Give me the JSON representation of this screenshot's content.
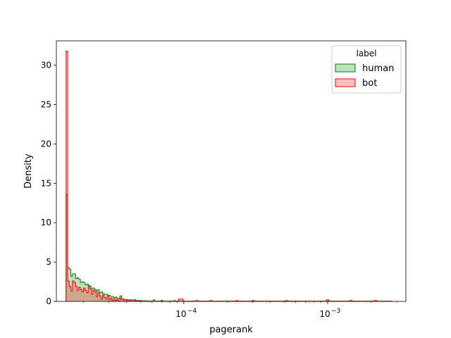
{
  "chart_data": {
    "type": "histogram",
    "xlabel": "pagerank",
    "ylabel": "Density",
    "xscale": "log",
    "xlim": [
      1.3e-05,
      0.0035
    ],
    "ylim": [
      0,
      33.1
    ],
    "x_ticks": [
      {
        "value": 0.0001,
        "base": "10",
        "exponent": "−4"
      },
      {
        "value": 0.001,
        "base": "10",
        "exponent": "−3"
      }
    ],
    "y_ticks": [
      {
        "value": 0,
        "label": "0"
      },
      {
        "value": 5,
        "label": "5"
      },
      {
        "value": 10,
        "label": "10"
      },
      {
        "value": 15,
        "label": "15"
      },
      {
        "value": 20,
        "label": "20"
      },
      {
        "value": 25,
        "label": "25"
      },
      {
        "value": 30,
        "label": "30"
      }
    ],
    "legend": {
      "title": "label",
      "placement": "upper right"
    },
    "series": [
      {
        "name": "human",
        "color": "#008000",
        "fill": "#bfe0bf",
        "bins": [
          [
            1.519e-05,
            1.558e-05,
            13.6
          ],
          [
            1.558e-05,
            1.598e-05,
            4.3
          ],
          [
            1.598e-05,
            1.639e-05,
            4.1
          ],
          [
            1.639e-05,
            1.681e-05,
            3.2
          ],
          [
            1.681e-05,
            1.724e-05,
            3.5
          ],
          [
            1.724e-05,
            1.768e-05,
            3.5
          ],
          [
            1.768e-05,
            1.813e-05,
            2.9
          ],
          [
            1.813e-05,
            1.86e-05,
            3.0
          ],
          [
            1.86e-05,
            1.908e-05,
            2.8
          ],
          [
            1.908e-05,
            1.957e-05,
            2.4
          ],
          [
            1.957e-05,
            2.007e-05,
            2.5
          ],
          [
            2.007e-05,
            2.059e-05,
            2.4
          ],
          [
            2.059e-05,
            2.112e-05,
            2.1
          ],
          [
            2.112e-05,
            2.166e-05,
            2.2
          ],
          [
            2.166e-05,
            2.222e-05,
            1.9
          ],
          [
            2.222e-05,
            2.279e-05,
            1.9
          ],
          [
            2.279e-05,
            2.337e-05,
            1.6
          ],
          [
            2.337e-05,
            2.397e-05,
            1.7
          ],
          [
            2.397e-05,
            2.459e-05,
            1.5
          ],
          [
            2.459e-05,
            2.522e-05,
            1.3
          ],
          [
            2.522e-05,
            2.587e-05,
            1.5
          ],
          [
            2.587e-05,
            2.653e-05,
            1.1
          ],
          [
            2.653e-05,
            2.721e-05,
            1.2
          ],
          [
            2.721e-05,
            2.791e-05,
            1.0
          ],
          [
            2.791e-05,
            2.863e-05,
            0.9
          ],
          [
            2.863e-05,
            2.936e-05,
            0.9
          ],
          [
            2.936e-05,
            3.012e-05,
            0.8
          ],
          [
            3.012e-05,
            3.089e-05,
            0.75
          ],
          [
            3.089e-05,
            3.168e-05,
            0.6
          ],
          [
            3.168e-05,
            3.25e-05,
            0.6
          ],
          [
            3.25e-05,
            3.333e-05,
            0.5
          ],
          [
            3.333e-05,
            3.419e-05,
            0.55
          ],
          [
            3.419e-05,
            3.507e-05,
            0.4
          ],
          [
            3.507e-05,
            3.597e-05,
            0.4
          ],
          [
            3.597e-05,
            3.689e-05,
            0.35
          ],
          [
            3.689e-05,
            3.784e-05,
            0.3
          ],
          [
            3.784e-05,
            3.881e-05,
            0.3
          ],
          [
            3.881e-05,
            3.981e-05,
            0.25
          ],
          [
            3.981e-05,
            4.083e-05,
            0.25
          ],
          [
            4.083e-05,
            4.188e-05,
            0.2
          ],
          [
            4.188e-05,
            4.296e-05,
            0.2
          ],
          [
            4.296e-05,
            4.406e-05,
            0.18
          ],
          [
            4.406e-05,
            4.519e-05,
            0.15
          ],
          [
            4.519e-05,
            4.635e-05,
            0.15
          ],
          [
            4.635e-05,
            4.754e-05,
            0.12
          ],
          [
            4.754e-05,
            4.876e-05,
            0.12
          ],
          [
            4.876e-05,
            5.002e-05,
            0.1
          ],
          [
            5.002e-05,
            5.13e-05,
            0.1
          ],
          [
            5.13e-05,
            5.262e-05,
            0.08
          ],
          [
            5.262e-05,
            5.397e-05,
            0.08
          ],
          [
            5.397e-05,
            5.536e-05,
            0.07
          ],
          [
            5.536e-05,
            5.678e-05,
            0.06
          ],
          [
            5.678e-05,
            5.824e-05,
            0.06
          ],
          [
            5.824e-05,
            5.973e-05,
            0.05
          ],
          [
            5.973e-05,
            6.127e-05,
            0.05
          ],
          [
            6.127e-05,
            6.284e-05,
            0.2
          ],
          [
            6.284e-05,
            6.446e-05,
            0.04
          ],
          [
            6.446e-05,
            6.611e-05,
            0.04
          ],
          [
            6.611e-05,
            6.781e-05,
            0.03
          ],
          [
            6.781e-05,
            6.955e-05,
            0.03
          ],
          [
            6.955e-05,
            7.134e-05,
            0.15
          ],
          [
            7.134e-05,
            7.317e-05,
            0.02
          ],
          [
            7.317e-05,
            7.505e-05,
            0.02
          ],
          [
            7.505e-05,
            7.698e-05,
            0.02
          ],
          [
            7.698e-05,
            7.896e-05,
            0.02
          ],
          [
            7.896e-05,
            8.099e-05,
            0.02
          ],
          [
            8.099e-05,
            8.307e-05,
            0.02
          ],
          [
            8.307e-05,
            8.521e-05,
            0.02
          ],
          [
            8.521e-05,
            8.74e-05,
            0.1
          ],
          [
            8.74e-05,
            0.0028,
            0.02
          ]
        ]
      },
      {
        "name": "bot",
        "color": "#ff0000",
        "fill": "#ffbfbf",
        "bins": [
          [
            1.519e-05,
            1.558e-05,
            31.8
          ],
          [
            1.558e-05,
            1.598e-05,
            2.6
          ],
          [
            1.598e-05,
            1.639e-05,
            1.9
          ],
          [
            1.639e-05,
            1.681e-05,
            1.3
          ],
          [
            1.681e-05,
            1.724e-05,
            2.6
          ],
          [
            1.724e-05,
            1.768e-05,
            2.4
          ],
          [
            1.768e-05,
            1.813e-05,
            1.9
          ],
          [
            1.813e-05,
            1.86e-05,
            1.4
          ],
          [
            1.86e-05,
            1.908e-05,
            1.8
          ],
          [
            1.908e-05,
            1.957e-05,
            1.5
          ],
          [
            1.957e-05,
            2.007e-05,
            1.2
          ],
          [
            2.007e-05,
            2.059e-05,
            1.7
          ],
          [
            2.059e-05,
            2.112e-05,
            1.4
          ],
          [
            2.112e-05,
            2.166e-05,
            1.1
          ],
          [
            2.166e-05,
            2.222e-05,
            2.0
          ],
          [
            2.222e-05,
            2.279e-05,
            1.6
          ],
          [
            2.279e-05,
            2.337e-05,
            0.9
          ],
          [
            2.337e-05,
            2.397e-05,
            1.4
          ],
          [
            2.397e-05,
            2.459e-05,
            1.2
          ],
          [
            2.459e-05,
            2.522e-05,
            0.6
          ],
          [
            2.522e-05,
            2.587e-05,
            1.1
          ],
          [
            2.587e-05,
            2.653e-05,
            0.7
          ],
          [
            2.653e-05,
            2.721e-05,
            0.3
          ],
          [
            2.721e-05,
            2.791e-05,
            0.8
          ],
          [
            2.791e-05,
            2.863e-05,
            0.5
          ],
          [
            2.863e-05,
            2.936e-05,
            0.3
          ],
          [
            2.936e-05,
            3.012e-05,
            0.7
          ],
          [
            3.012e-05,
            3.089e-05,
            0.2
          ],
          [
            3.089e-05,
            3.168e-05,
            0.4
          ],
          [
            3.168e-05,
            3.25e-05,
            0.1
          ],
          [
            3.25e-05,
            3.333e-05,
            0.35
          ],
          [
            3.333e-05,
            3.419e-05,
            0.1
          ],
          [
            3.419e-05,
            3.507e-05,
            0.25
          ],
          [
            3.507e-05,
            3.597e-05,
            0.05
          ],
          [
            3.597e-05,
            3.689e-05,
            0.7
          ],
          [
            3.689e-05,
            3.784e-05,
            0.3
          ],
          [
            3.784e-05,
            3.881e-05,
            0.1
          ],
          [
            3.881e-05,
            3.981e-05,
            0.05
          ],
          [
            3.981e-05,
            4.083e-05,
            0.2
          ],
          [
            4.083e-05,
            4.188e-05,
            0.05
          ],
          [
            4.188e-05,
            4.296e-05,
            0.1
          ],
          [
            4.296e-05,
            4.406e-05,
            0.05
          ],
          [
            4.406e-05,
            4.519e-05,
            0.02
          ],
          [
            4.519e-05,
            4.635e-05,
            0.2
          ],
          [
            4.635e-05,
            4.754e-05,
            0.02
          ],
          [
            4.754e-05,
            4.876e-05,
            0.1
          ],
          [
            4.876e-05,
            5.002e-05,
            0.02
          ],
          [
            5.002e-05,
            5.13e-05,
            0.05
          ],
          [
            5.13e-05,
            5.262e-05,
            0.02
          ],
          [
            5.262e-05,
            5.397e-05,
            0.02
          ],
          [
            5.397e-05,
            5.536e-05,
            0.05
          ],
          [
            5.536e-05,
            5.678e-05,
            0.02
          ],
          [
            5.678e-05,
            5.824e-05,
            0.02
          ],
          [
            5.824e-05,
            5.973e-05,
            0.02
          ],
          [
            5.973e-05,
            6.127e-05,
            0.02
          ],
          [
            6.127e-05,
            6.284e-05,
            0.02
          ],
          [
            6.284e-05,
            6.446e-05,
            0.02
          ],
          [
            6.446e-05,
            6.611e-05,
            0.02
          ],
          [
            6.611e-05,
            6.781e-05,
            0.02
          ],
          [
            6.781e-05,
            6.955e-05,
            0.02
          ],
          [
            6.955e-05,
            7.134e-05,
            0.02
          ],
          [
            7.134e-05,
            7.317e-05,
            0.02
          ],
          [
            7.317e-05,
            7.505e-05,
            0.02
          ],
          [
            7.505e-05,
            7.698e-05,
            0.02
          ],
          [
            7.698e-05,
            7.896e-05,
            0.02
          ],
          [
            7.896e-05,
            8.099e-05,
            0.02
          ],
          [
            8.099e-05,
            8.307e-05,
            0.02
          ],
          [
            8.307e-05,
            8.521e-05,
            0.02
          ],
          [
            8.521e-05,
            8.74e-05,
            0.02
          ],
          [
            8.74e-05,
            9.2e-05,
            0.02
          ],
          [
            9.2e-05,
            9.9e-05,
            0.3
          ],
          [
            9.9e-05,
            0.000121,
            0.02
          ],
          [
            0.000121,
            0.000125,
            0.1
          ],
          [
            0.000125,
            0.000152,
            0.02
          ],
          [
            0.000152,
            0.000157,
            0.1
          ],
          [
            0.000157,
            0.00023,
            0.02
          ],
          [
            0.00023,
            0.000238,
            0.1
          ],
          [
            0.000238,
            0.000298,
            0.02
          ],
          [
            0.000298,
            0.000308,
            0.1
          ],
          [
            0.000308,
            0.00051,
            0.02
          ],
          [
            0.00051,
            0.000528,
            0.1
          ],
          [
            0.000528,
            0.00098,
            0.02
          ],
          [
            0.00098,
            0.00102,
            0.2
          ],
          [
            0.00102,
            0.00142,
            0.02
          ],
          [
            0.00142,
            0.00148,
            0.1
          ],
          [
            0.00148,
            0.0021,
            0.02
          ],
          [
            0.0021,
            0.0022,
            0.1
          ],
          [
            0.0022,
            0.0028,
            0.02
          ]
        ]
      }
    ]
  }
}
